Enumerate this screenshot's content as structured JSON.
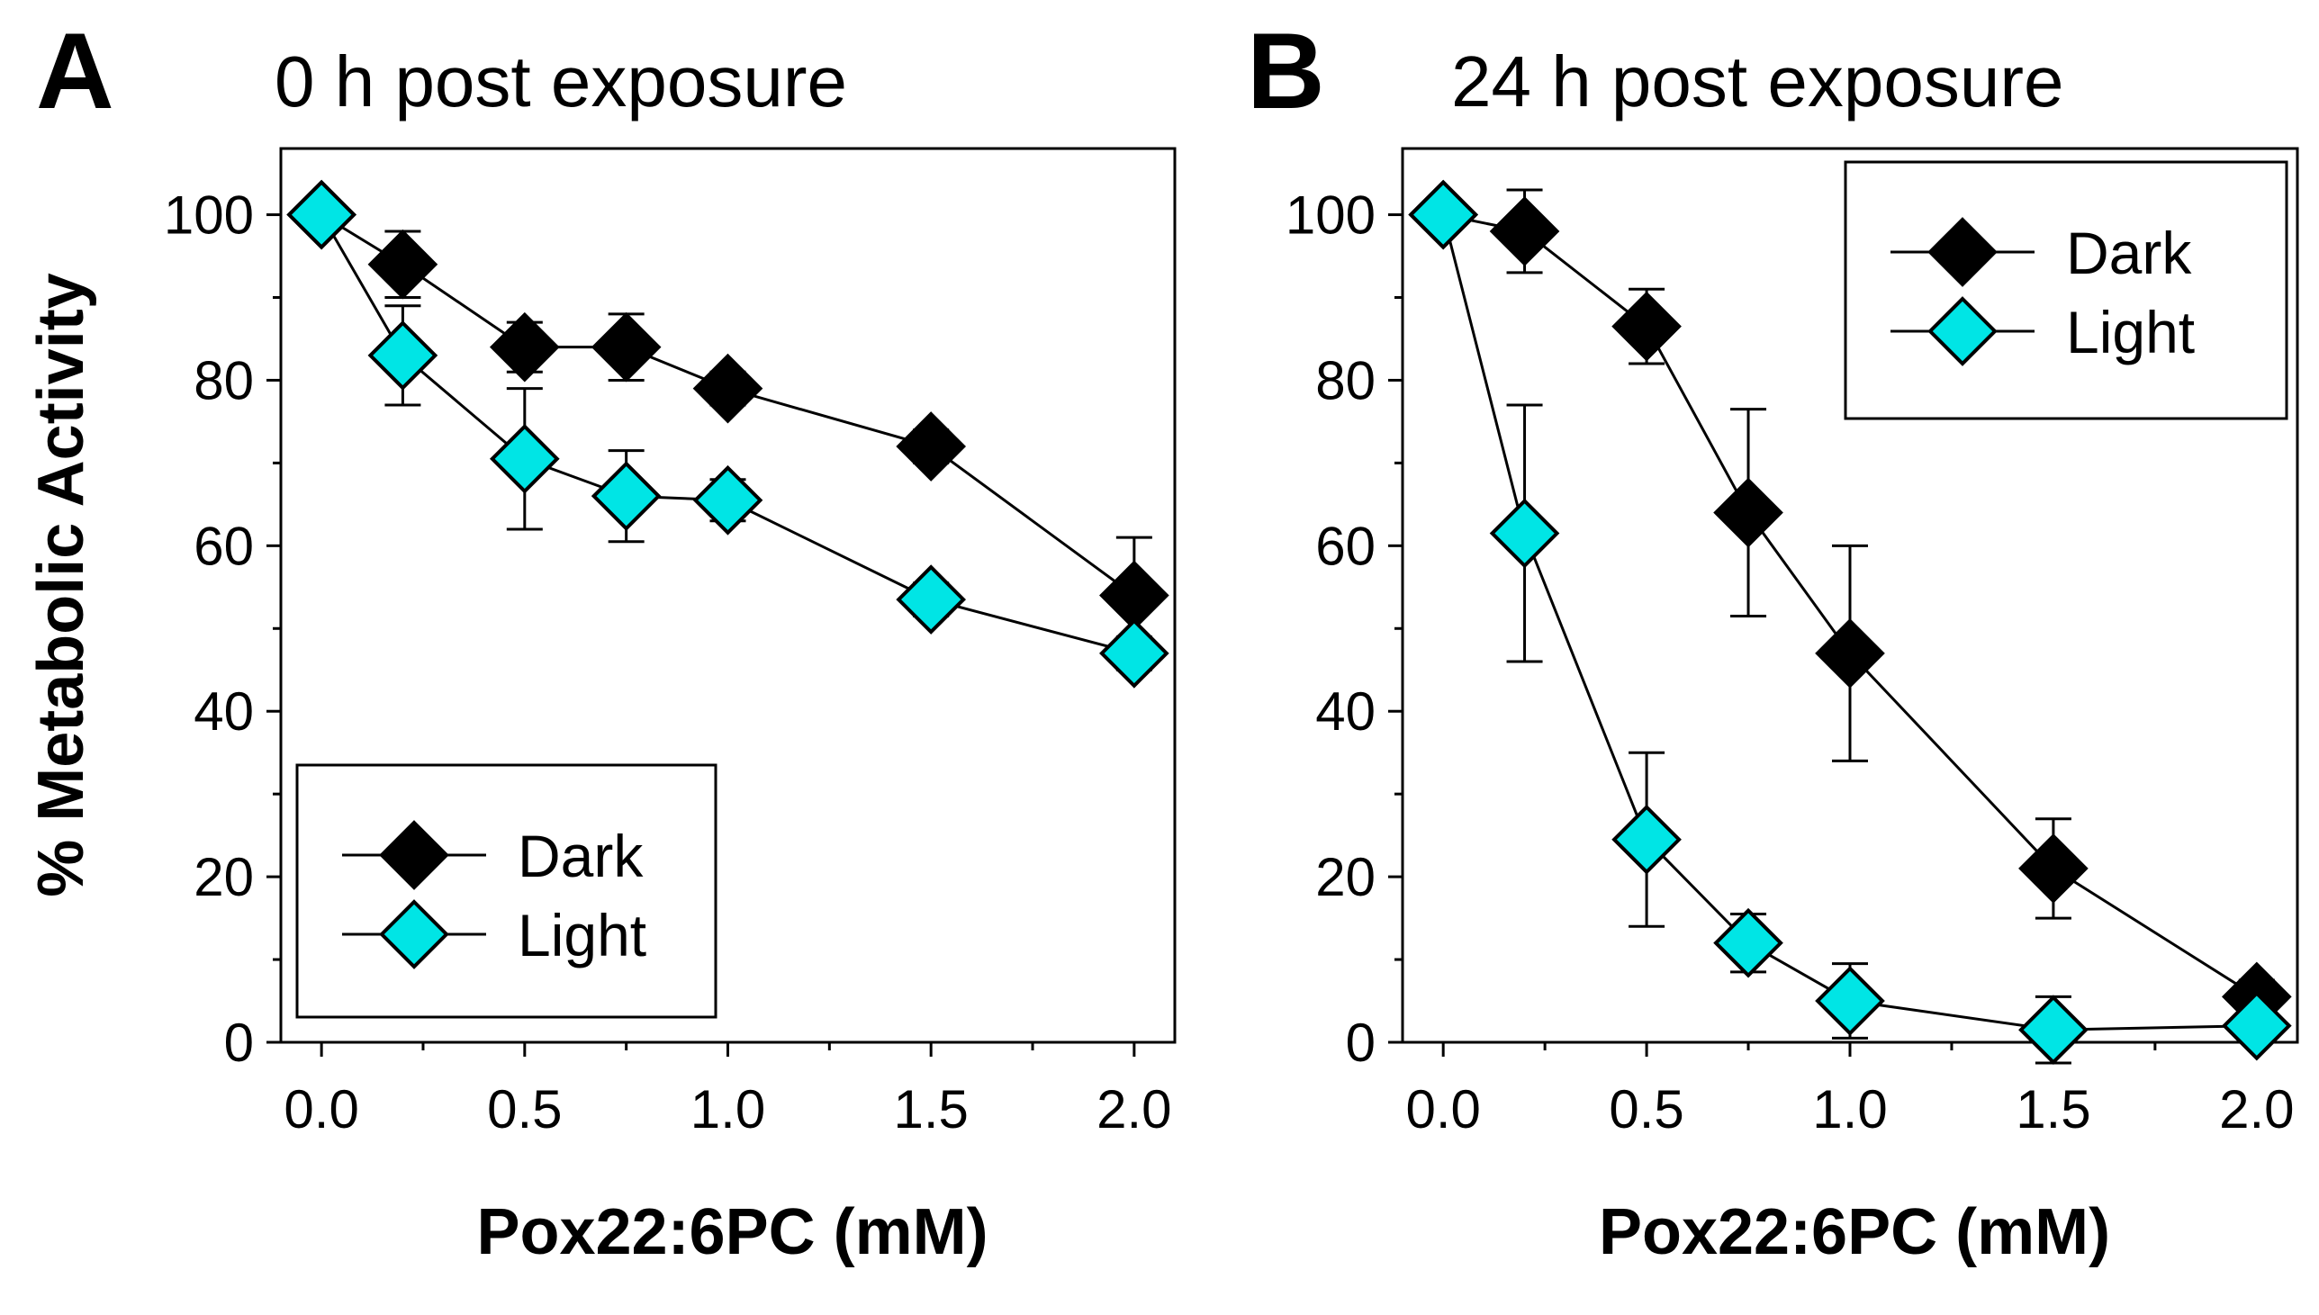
{
  "figure": {
    "ylabel": "% Metabolic Activity"
  },
  "chart_data": [
    {
      "type": "line",
      "panel": "A",
      "title": "0 h post exposure",
      "xlabel": "Pox22:6PC (mM)",
      "ylabel": "% Metabolic Activity",
      "xlim": [
        -0.1,
        2.1
      ],
      "ylim": [
        0,
        108
      ],
      "xticks": [
        "0.0",
        "0.5",
        "1.0",
        "1.5",
        "2.0"
      ],
      "yticks": [
        "0",
        "20",
        "40",
        "60",
        "80",
        "100"
      ],
      "legend_position": "bottom-left",
      "grid": false,
      "series": [
        {
          "name": "Dark",
          "color": "#000000",
          "x": [
            0,
            0.2,
            0.5,
            0.75,
            1.0,
            1.5,
            2.0
          ],
          "y": [
            100,
            94,
            84,
            84,
            79,
            72,
            54
          ],
          "error": [
            0,
            4,
            3,
            4,
            2,
            2,
            7
          ]
        },
        {
          "name": "Light",
          "color": "#00e5e5",
          "x": [
            0,
            0.2,
            0.5,
            0.75,
            1.0,
            1.5,
            2.0
          ],
          "y": [
            100,
            83,
            70.5,
            66,
            65.5,
            53.5,
            47
          ],
          "error": [
            0,
            6,
            8.5,
            5.5,
            2.5,
            2,
            2
          ]
        }
      ]
    },
    {
      "type": "line",
      "panel": "B",
      "title": "24 h post exposure",
      "xlabel": "Pox22:6PC (mM)",
      "ylabel": "% Metabolic Activity",
      "xlim": [
        -0.1,
        2.1
      ],
      "ylim": [
        0,
        108
      ],
      "xticks": [
        "0.0",
        "0.5",
        "1.0",
        "1.5",
        "2.0"
      ],
      "yticks": [
        "0",
        "20",
        "40",
        "60",
        "80",
        "100"
      ],
      "legend_position": "top-right",
      "grid": false,
      "series": [
        {
          "name": "Dark",
          "color": "#000000",
          "x": [
            0,
            0.2,
            0.5,
            0.75,
            1.0,
            1.5,
            2.0
          ],
          "y": [
            100,
            98,
            86.5,
            64,
            47,
            21,
            5.5
          ],
          "error": [
            0,
            5,
            4.5,
            12.5,
            13,
            6,
            2
          ]
        },
        {
          "name": "Light",
          "color": "#00e5e5",
          "x": [
            0,
            0.2,
            0.5,
            0.75,
            1.0,
            1.5,
            2.0
          ],
          "y": [
            100,
            61.5,
            24.5,
            12,
            5,
            1.5,
            2
          ],
          "error": [
            0,
            15.5,
            10.5,
            3.5,
            4.5,
            4,
            0
          ]
        }
      ]
    }
  ]
}
